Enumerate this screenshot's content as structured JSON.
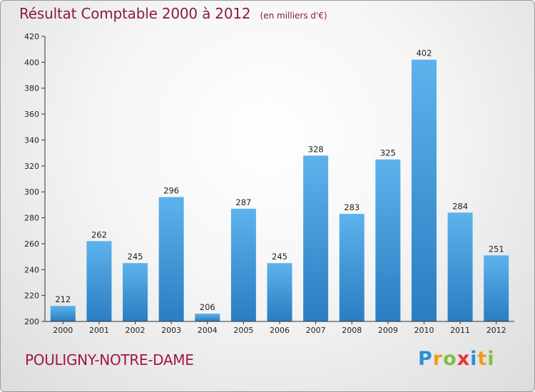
{
  "header": {
    "title": "Résultat Comptable 2000 à 2012",
    "subtitle": "(en milliers d'€)"
  },
  "footer": {
    "place": "POULIGNY-NOTRE-DAME",
    "brand_letters": [
      "P",
      "r",
      "o",
      "x",
      "i",
      "t",
      "i"
    ],
    "brand_colors": [
      "#2a8fd6",
      "#f39a1f",
      "#7bc043",
      "#e8302f",
      "#2a8fd6",
      "#f39a1f",
      "#7bc043"
    ]
  },
  "chart_data": {
    "type": "bar",
    "title": "Résultat Comptable 2000 à 2012",
    "subtitle": "(en milliers d'€)",
    "categories": [
      "2000",
      "2001",
      "2002",
      "2003",
      "2004",
      "2005",
      "2006",
      "2007",
      "2008",
      "2009",
      "2010",
      "2011",
      "2012"
    ],
    "values": [
      212,
      262,
      245,
      296,
      206,
      287,
      245,
      328,
      283,
      325,
      402,
      284,
      251
    ],
    "ylim": [
      200,
      420
    ],
    "yticks": [
      200,
      220,
      240,
      260,
      280,
      300,
      320,
      340,
      360,
      380,
      400,
      420
    ],
    "grid": false,
    "bar_color_top": "#5eb2ec",
    "bar_color_bottom": "#2a7dc1"
  }
}
